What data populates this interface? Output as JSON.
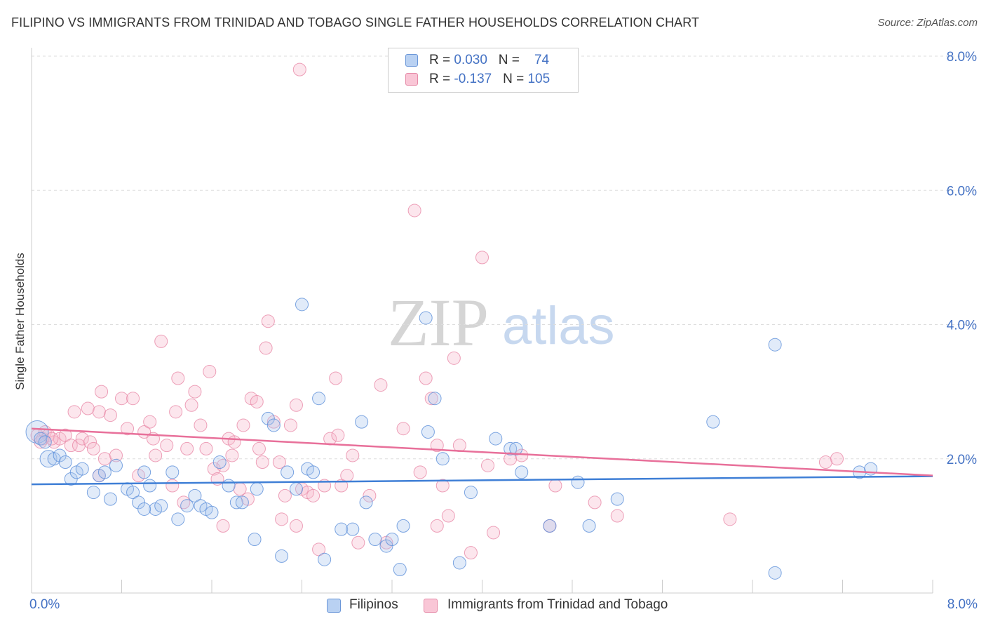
{
  "title": "FILIPINO VS IMMIGRANTS FROM TRINIDAD AND TOBAGO SINGLE FATHER HOUSEHOLDS CORRELATION CHART",
  "source": "Source: ZipAtlas.com",
  "watermark": {
    "zip": "ZIP",
    "atlas": "atlas"
  },
  "legend": {
    "rows": [
      {
        "r_label": "R = ",
        "r_value": "0.030",
        "n_label": "N = ",
        "n_value": "74"
      },
      {
        "r_label": "R = ",
        "r_value": "-0.137",
        "n_label": "N = ",
        "n_value": "105"
      }
    ]
  },
  "bottom_legend": [
    "Filipinos",
    "Immigrants from Trinidad and Tobago"
  ],
  "chart_data": {
    "type": "scatter",
    "title": "FILIPINO VS IMMIGRANTS FROM TRINIDAD AND TOBAGO SINGLE FATHER HOUSEHOLDS CORRELATION CHART",
    "xlabel": "",
    "ylabel": "Single Father Households",
    "xlim": [
      0,
      8
    ],
    "ylim": [
      0,
      8
    ],
    "x_tick_labels": [
      "0.0%",
      "8.0%"
    ],
    "y_ticks": [
      2,
      4,
      6,
      8
    ],
    "y_tick_labels": [
      "2.0%",
      "4.0%",
      "6.0%",
      "8.0%"
    ],
    "grid": "horizontal dashed",
    "legend_position": "top-center",
    "colors": {
      "filipinos": "#3f7fd6",
      "trinidad": "#e8709a"
    },
    "series": [
      {
        "name": "Filipinos",
        "R": 0.03,
        "N": 74,
        "trend": {
          "x": [
            0,
            8
          ],
          "y": [
            1.62,
            1.74
          ]
        },
        "points": [
          [
            0.05,
            2.4
          ],
          [
            0.08,
            2.3
          ],
          [
            0.12,
            2.25
          ],
          [
            0.15,
            2.0
          ],
          [
            0.2,
            2.0
          ],
          [
            0.25,
            2.05
          ],
          [
            0.3,
            1.95
          ],
          [
            0.35,
            1.7
          ],
          [
            0.4,
            1.8
          ],
          [
            0.45,
            1.85
          ],
          [
            0.55,
            1.5
          ],
          [
            0.6,
            1.75
          ],
          [
            0.65,
            1.8
          ],
          [
            0.7,
            1.4
          ],
          [
            0.75,
            1.9
          ],
          [
            0.85,
            1.55
          ],
          [
            0.9,
            1.5
          ],
          [
            0.95,
            1.35
          ],
          [
            1.0,
            1.8
          ],
          [
            1.05,
            1.6
          ],
          [
            1.1,
            1.25
          ],
          [
            1.15,
            1.3
          ],
          [
            1.25,
            1.8
          ],
          [
            1.3,
            1.1
          ],
          [
            1.38,
            1.3
          ],
          [
            1.45,
            1.45
          ],
          [
            1.5,
            1.3
          ],
          [
            1.55,
            1.25
          ],
          [
            1.6,
            1.2
          ],
          [
            1.67,
            1.95
          ],
          [
            1.75,
            1.6
          ],
          [
            1.82,
            1.35
          ],
          [
            1.87,
            1.35
          ],
          [
            1.98,
            0.8
          ],
          [
            2.0,
            1.55
          ],
          [
            2.1,
            2.6
          ],
          [
            2.15,
            2.5
          ],
          [
            2.22,
            0.55
          ],
          [
            2.27,
            1.8
          ],
          [
            2.35,
            1.55
          ],
          [
            2.4,
            4.3
          ],
          [
            2.45,
            1.85
          ],
          [
            2.5,
            1.8
          ],
          [
            2.6,
            0.5
          ],
          [
            2.55,
            2.9
          ],
          [
            2.75,
            0.95
          ],
          [
            2.85,
            0.95
          ],
          [
            2.93,
            2.55
          ],
          [
            2.97,
            1.35
          ],
          [
            3.05,
            0.8
          ],
          [
            3.15,
            0.7
          ],
          [
            3.2,
            0.8
          ],
          [
            3.27,
            0.35
          ],
          [
            3.3,
            1.0
          ],
          [
            3.5,
            4.1
          ],
          [
            3.52,
            2.4
          ],
          [
            3.58,
            2.9
          ],
          [
            3.65,
            2.0
          ],
          [
            3.8,
            0.45
          ],
          [
            3.9,
            1.5
          ],
          [
            4.12,
            2.3
          ],
          [
            4.25,
            2.15
          ],
          [
            4.3,
            2.15
          ],
          [
            4.35,
            1.8
          ],
          [
            4.6,
            1.0
          ],
          [
            4.85,
            1.65
          ],
          [
            4.95,
            1.0
          ],
          [
            5.2,
            1.4
          ],
          [
            6.05,
            2.55
          ],
          [
            6.6,
            3.7
          ],
          [
            6.6,
            0.3
          ],
          [
            7.35,
            1.8
          ],
          [
            7.45,
            1.85
          ],
          [
            1.0,
            1.25
          ]
        ]
      },
      {
        "name": "Immigrants from Trinidad and Tobago",
        "R": -0.137,
        "N": 105,
        "trend": {
          "x": [
            0,
            8
          ],
          "y": [
            2.45,
            1.75
          ]
        },
        "points": [
          [
            0.05,
            2.35
          ],
          [
            0.1,
            2.3
          ],
          [
            0.12,
            2.4
          ],
          [
            0.15,
            2.35
          ],
          [
            0.2,
            2.25
          ],
          [
            0.25,
            2.3
          ],
          [
            0.3,
            2.35
          ],
          [
            0.35,
            2.2
          ],
          [
            0.38,
            2.7
          ],
          [
            0.42,
            2.2
          ],
          [
            0.45,
            2.3
          ],
          [
            0.5,
            2.75
          ],
          [
            0.52,
            2.25
          ],
          [
            0.55,
            2.15
          ],
          [
            0.6,
            2.7
          ],
          [
            0.62,
            3.0
          ],
          [
            0.65,
            2.0
          ],
          [
            0.7,
            2.65
          ],
          [
            0.75,
            2.05
          ],
          [
            0.8,
            2.9
          ],
          [
            0.85,
            2.45
          ],
          [
            0.9,
            2.9
          ],
          [
            0.95,
            1.75
          ],
          [
            1.0,
            2.4
          ],
          [
            1.05,
            2.55
          ],
          [
            1.08,
            2.3
          ],
          [
            1.1,
            2.05
          ],
          [
            1.15,
            3.75
          ],
          [
            1.2,
            2.2
          ],
          [
            1.25,
            1.6
          ],
          [
            1.28,
            2.7
          ],
          [
            1.3,
            3.2
          ],
          [
            1.35,
            1.35
          ],
          [
            1.38,
            2.15
          ],
          [
            1.42,
            2.8
          ],
          [
            1.45,
            3.0
          ],
          [
            1.5,
            2.5
          ],
          [
            1.55,
            2.15
          ],
          [
            1.58,
            3.3
          ],
          [
            1.62,
            1.85
          ],
          [
            1.65,
            1.7
          ],
          [
            1.7,
            1.9
          ],
          [
            1.75,
            2.3
          ],
          [
            1.78,
            2.05
          ],
          [
            1.8,
            2.25
          ],
          [
            1.85,
            1.55
          ],
          [
            1.88,
            2.5
          ],
          [
            1.92,
            1.4
          ],
          [
            1.95,
            2.9
          ],
          [
            2.0,
            2.85
          ],
          [
            2.02,
            2.15
          ],
          [
            2.05,
            1.95
          ],
          [
            2.08,
            3.65
          ],
          [
            2.1,
            4.05
          ],
          [
            2.15,
            2.55
          ],
          [
            2.2,
            1.95
          ],
          [
            2.22,
            1.1
          ],
          [
            2.25,
            1.45
          ],
          [
            2.3,
            2.5
          ],
          [
            2.35,
            2.8
          ],
          [
            2.38,
            7.8
          ],
          [
            2.4,
            1.55
          ],
          [
            2.45,
            1.5
          ],
          [
            2.5,
            1.45
          ],
          [
            2.55,
            0.65
          ],
          [
            2.6,
            1.6
          ],
          [
            2.65,
            2.3
          ],
          [
            2.7,
            3.2
          ],
          [
            2.72,
            2.35
          ],
          [
            2.75,
            1.6
          ],
          [
            2.8,
            1.75
          ],
          [
            2.85,
            2.05
          ],
          [
            2.9,
            0.75
          ],
          [
            3.0,
            1.45
          ],
          [
            3.1,
            3.1
          ],
          [
            3.15,
            0.75
          ],
          [
            3.3,
            2.45
          ],
          [
            3.4,
            5.7
          ],
          [
            3.45,
            1.8
          ],
          [
            3.5,
            3.2
          ],
          [
            3.55,
            2.9
          ],
          [
            3.6,
            2.2
          ],
          [
            3.65,
            1.6
          ],
          [
            3.7,
            1.15
          ],
          [
            3.75,
            3.5
          ],
          [
            3.8,
            2.2
          ],
          [
            3.9,
            0.6
          ],
          [
            4.0,
            5.0
          ],
          [
            4.05,
            1.9
          ],
          [
            4.1,
            0.9
          ],
          [
            4.25,
            2.0
          ],
          [
            4.35,
            2.05
          ],
          [
            4.6,
            1.0
          ],
          [
            4.65,
            1.6
          ],
          [
            5.0,
            1.35
          ],
          [
            5.2,
            1.15
          ],
          [
            6.2,
            1.1
          ],
          [
            7.05,
            1.95
          ],
          [
            7.15,
            2.0
          ],
          [
            0.08,
            2.25
          ],
          [
            0.18,
            2.3
          ],
          [
            0.6,
            1.75
          ],
          [
            1.7,
            1.0
          ],
          [
            3.6,
            1.0
          ],
          [
            2.35,
            1.0
          ]
        ]
      }
    ]
  }
}
